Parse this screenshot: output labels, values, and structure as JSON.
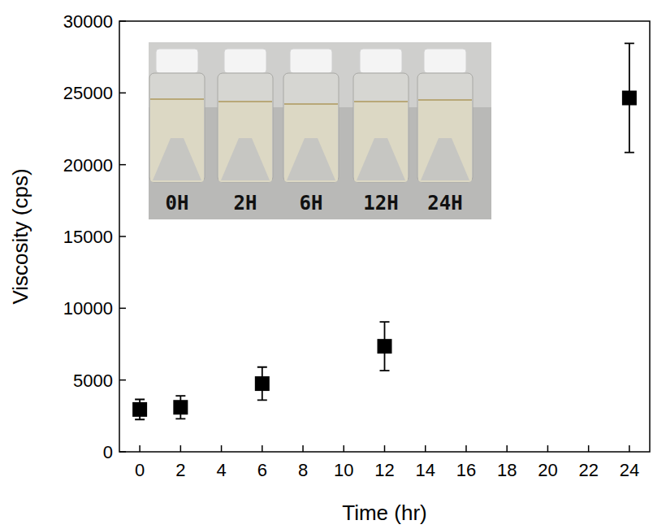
{
  "chart_data": {
    "type": "scatter",
    "x_label": "Time (hr)",
    "y_label": "Viscosity (cps)",
    "x": [
      0,
      2,
      6,
      12,
      24
    ],
    "series": [
      {
        "color": "#000000",
        "marker": "square",
        "values": [
          2950,
          3100,
          4750,
          7350,
          24650
        ],
        "errors": [
          700,
          800,
          1150,
          1700,
          3800
        ]
      }
    ],
    "xlim": [
      -1,
      25
    ],
    "xticks": [
      0,
      2,
      4,
      6,
      8,
      10,
      12,
      14,
      16,
      18,
      20,
      22,
      24
    ],
    "ylim": [
      0,
      30000
    ],
    "yticks": [
      0,
      5000,
      10000,
      15000,
      20000,
      25000,
      30000
    ],
    "annotations": [
      "0H",
      "2H",
      "6H",
      "12H",
      "24H"
    ]
  }
}
